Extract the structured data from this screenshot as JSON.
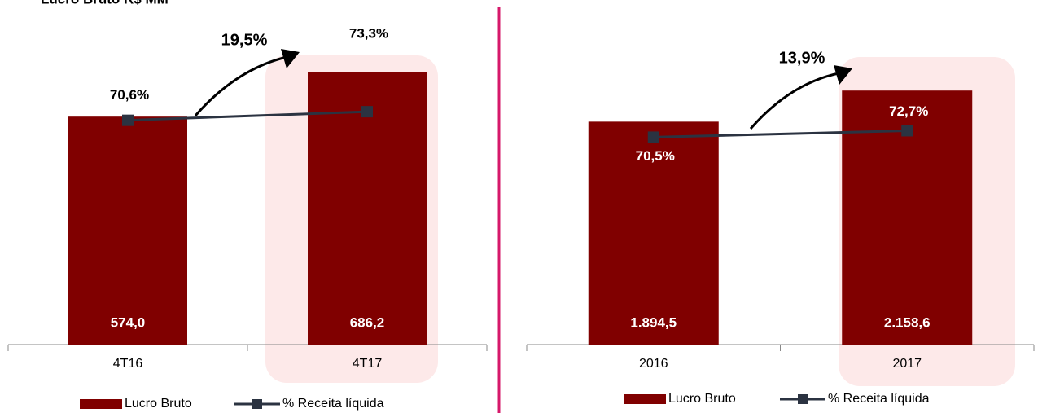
{
  "chart_data": [
    {
      "type": "bar",
      "title": "Lucro Bruto R$ MM",
      "categories": [
        "4T16",
        "4T17"
      ],
      "series": [
        {
          "name": "Lucro Bruto",
          "color": "#800000",
          "values": [
            574.0,
            686.2
          ],
          "value_labels": [
            "574,0",
            "686,2"
          ]
        },
        {
          "name": "% Receita líquida",
          "color": "#2b3341",
          "axis": "y2",
          "values": [
            70.6,
            73.3
          ],
          "value_labels": [
            "70,6%",
            "73,3%"
          ]
        }
      ],
      "ylim": [
        0,
        800
      ],
      "y2lim": [
        0,
        100
      ],
      "annotation": "19,5%"
    },
    {
      "type": "bar",
      "categories": [
        "2016",
        "2017"
      ],
      "series": [
        {
          "name": "Lucro Bruto",
          "color": "#800000",
          "values": [
            1894.5,
            2158.6
          ],
          "value_labels": [
            "1.894,5",
            "2.158,6"
          ]
        },
        {
          "name": "% Receita líquida",
          "color": "#2b3341",
          "axis": "y2",
          "values": [
            70.5,
            72.7
          ],
          "value_labels": [
            "70,5%",
            "72,7%"
          ]
        }
      ],
      "ylim": [
        0,
        2700
      ],
      "y2lim": [
        0,
        108
      ],
      "annotation": "13,9%"
    }
  ]
}
